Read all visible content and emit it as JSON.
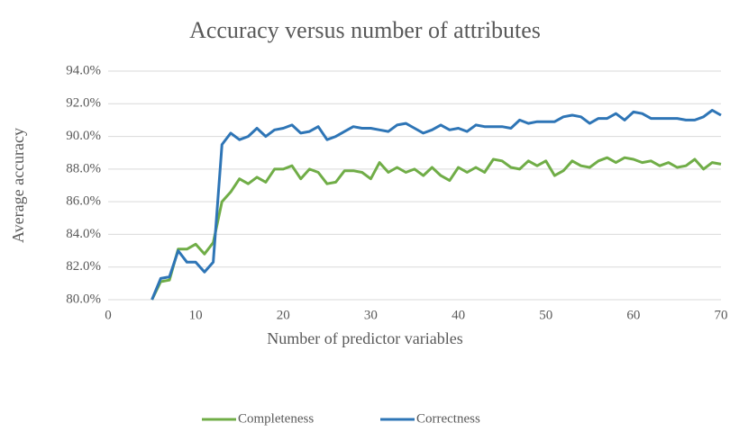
{
  "chart_data": {
    "type": "line",
    "title": "Accuracy versus number of attributes",
    "x_label": "Number of predictor variables",
    "y_label": "Average accuracy",
    "x": [
      5,
      6,
      7,
      8,
      9,
      10,
      11,
      12,
      13,
      14,
      15,
      16,
      17,
      18,
      19,
      20,
      21,
      22,
      23,
      24,
      25,
      26,
      27,
      28,
      29,
      30,
      31,
      32,
      33,
      34,
      35,
      36,
      37,
      38,
      39,
      40,
      41,
      42,
      43,
      44,
      45,
      46,
      47,
      48,
      49,
      50,
      51,
      52,
      53,
      54,
      55,
      56,
      57,
      58,
      59,
      60,
      61,
      62,
      63,
      64,
      65,
      66,
      67,
      68,
      69,
      70
    ],
    "series": [
      {
        "name": "Completeness",
        "color": "#70ad47",
        "values": [
          80.0,
          81.1,
          81.2,
          83.1,
          83.1,
          83.4,
          82.8,
          83.5,
          86.0,
          86.6,
          87.4,
          87.1,
          87.5,
          87.2,
          88.0,
          88.0,
          88.2,
          87.4,
          88.0,
          87.8,
          87.1,
          87.2,
          87.9,
          87.9,
          87.8,
          87.4,
          88.4,
          87.8,
          88.1,
          87.8,
          88.0,
          87.6,
          88.1,
          87.6,
          87.3,
          88.1,
          87.8,
          88.1,
          87.8,
          88.6,
          88.5,
          88.1,
          88.0,
          88.5,
          88.2,
          88.5,
          87.6,
          87.9,
          88.5,
          88.2,
          88.1,
          88.5,
          88.7,
          88.4,
          88.7,
          88.6,
          88.4,
          88.5,
          88.2,
          88.4,
          88.1,
          88.2,
          88.6,
          88.0,
          88.4,
          88.3
        ]
      },
      {
        "name": "Correctness",
        "color": "#2e75b6",
        "values": [
          80.0,
          81.3,
          81.4,
          83.0,
          82.3,
          82.3,
          81.7,
          82.3,
          89.5,
          90.2,
          89.8,
          90.0,
          90.5,
          90.0,
          90.4,
          90.5,
          90.7,
          90.2,
          90.3,
          90.6,
          89.8,
          90.0,
          90.3,
          90.6,
          90.5,
          90.5,
          90.4,
          90.3,
          90.7,
          90.8,
          90.5,
          90.2,
          90.4,
          90.7,
          90.4,
          90.5,
          90.3,
          90.7,
          90.6,
          90.6,
          90.6,
          90.5,
          91.0,
          90.8,
          90.9,
          90.9,
          90.9,
          91.2,
          91.3,
          91.2,
          90.8,
          91.1,
          91.1,
          91.4,
          91.0,
          91.5,
          91.4,
          91.1,
          91.1,
          91.1,
          91.1,
          91.0,
          91.0,
          91.2,
          91.6,
          91.3
        ]
      }
    ],
    "xlim": [
      0,
      70
    ],
    "xticks": [
      0,
      10,
      20,
      30,
      40,
      50,
      60,
      70
    ],
    "ylim": [
      80,
      94
    ],
    "yticks": [
      {
        "value": 80,
        "label": "80.0%"
      },
      {
        "value": 82,
        "label": "82.0%"
      },
      {
        "value": 84,
        "label": "84.0%"
      },
      {
        "value": 86,
        "label": "86.0%"
      },
      {
        "value": 88,
        "label": "88.0%"
      },
      {
        "value": 90,
        "label": "90.0%"
      },
      {
        "value": 92,
        "label": "92.0%"
      },
      {
        "value": 94,
        "label": "94.0%"
      }
    ],
    "grid": true,
    "legend": "bottom"
  }
}
